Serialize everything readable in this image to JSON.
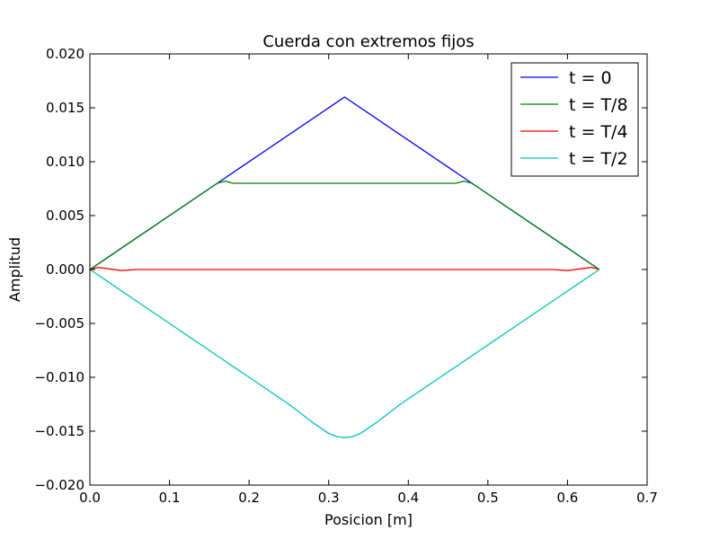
{
  "chart_data": {
    "type": "line",
    "title": "Cuerda con extremos fijos",
    "xlabel": "Posicion [m]",
    "ylabel": "Amplitud",
    "xlim": [
      0.0,
      0.7
    ],
    "ylim": [
      -0.02,
      0.02
    ],
    "xticks": [
      "0.0",
      "0.1",
      "0.2",
      "0.3",
      "0.4",
      "0.5",
      "0.6",
      "0.7"
    ],
    "yticks": [
      "−0.020",
      "−0.015",
      "−0.010",
      "−0.005",
      "0.000",
      "0.005",
      "0.010",
      "0.015",
      "0.020"
    ],
    "grid": false,
    "legend_position": "top-right",
    "series": [
      {
        "name": "t = 0",
        "color": "#0000ff",
        "x": [
          0.0,
          0.32,
          0.64
        ],
        "y": [
          0.0,
          0.016,
          0.0
        ]
      },
      {
        "name": "t = T/8",
        "color": "#008000",
        "x": [
          0.0,
          0.16,
          0.17,
          0.18,
          0.2,
          0.25,
          0.3,
          0.35,
          0.4,
          0.45,
          0.46,
          0.47,
          0.48,
          0.64
        ],
        "y": [
          0.0,
          0.008,
          0.0082,
          0.008,
          0.008,
          0.008,
          0.008,
          0.008,
          0.008,
          0.008,
          0.008,
          0.0082,
          0.008,
          0.0
        ]
      },
      {
        "name": "t = T/4",
        "color": "#ff0000",
        "x": [
          0.0,
          0.01,
          0.02,
          0.04,
          0.06,
          0.1,
          0.2,
          0.3,
          0.4,
          0.5,
          0.58,
          0.6,
          0.62,
          0.63,
          0.64
        ],
        "y": [
          0.0,
          0.0002,
          0.0001,
          -0.0001,
          0.0,
          0.0,
          0.0,
          0.0,
          0.0,
          0.0,
          0.0,
          -0.0001,
          0.0001,
          0.0002,
          0.0
        ]
      },
      {
        "name": "t = T/2",
        "color": "#00bfbf",
        "x": [
          0.0,
          0.05,
          0.1,
          0.15,
          0.2,
          0.25,
          0.28,
          0.3,
          0.31,
          0.32,
          0.33,
          0.34,
          0.36,
          0.39,
          0.44,
          0.49,
          0.54,
          0.59,
          0.64
        ],
        "y": [
          0.0,
          -0.0025,
          -0.005,
          -0.0075,
          -0.01,
          -0.0125,
          -0.0142,
          -0.0152,
          -0.0155,
          -0.0156,
          -0.0155,
          -0.0152,
          -0.0142,
          -0.0125,
          -0.01,
          -0.0075,
          -0.005,
          -0.0025,
          0.0
        ]
      }
    ]
  }
}
